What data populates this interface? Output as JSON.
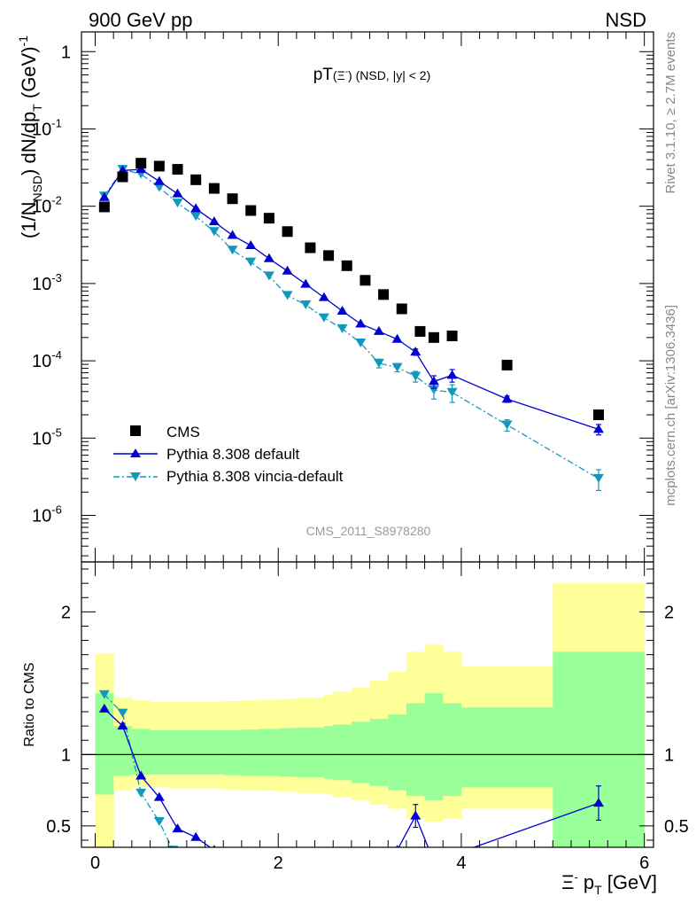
{
  "header": {
    "left": "900 GeV pp",
    "right": "NSD"
  },
  "plot_title": {
    "main": "pT",
    "paren": "(Ξ",
    "sup": "-",
    "rest": ") (NSD, |y| < 2)"
  },
  "side_labels": {
    "rivet": "Rivet 3.1.10, ≥ 2.7M events",
    "mcplots": "mcplots.cern.ch [arXiv:1306.3436]"
  },
  "watermark": "CMS_2011_S8978280",
  "y_axis_label": {
    "a": "(1/N",
    "b": "NSD",
    "c": ") dN/dp",
    "d": "T",
    "e": " (GeV)",
    "f": "-1"
  },
  "ratio_label": "Ratio to CMS",
  "x_axis_label": {
    "a": "Ξ",
    "b": "-",
    "c": " p",
    "d": "T",
    "e": " [GeV]"
  },
  "upper_ticks": [
    {
      "label": "1",
      "exp": ""
    },
    {
      "label": "10",
      "exp": "-1"
    },
    {
      "label": "10",
      "exp": "-2"
    },
    {
      "label": "10",
      "exp": "-3"
    },
    {
      "label": "10",
      "exp": "-4"
    },
    {
      "label": "10",
      "exp": "-5"
    },
    {
      "label": "10",
      "exp": "-6"
    }
  ],
  "legend": {
    "cms": "CMS",
    "pythia_default": "Pythia 8.308 default",
    "pythia_vincia": "Pythia 8.308 vincia-default"
  },
  "colors": {
    "cms": "#000000",
    "pythia_default": "#0000d0",
    "pythia_vincia": "#1199bb",
    "band_yellow": "#ffff99",
    "band_green": "#99ff99"
  },
  "chart_data": [
    {
      "type": "scatter",
      "log_y": true,
      "xlim": [
        -0.15,
        6.1
      ],
      "ylim": [
        2.5e-07,
        1.8
      ],
      "xticks": [
        0,
        2,
        4,
        6
      ],
      "series": [
        {
          "name": "CMS",
          "x": [
            0.1,
            0.3,
            0.5,
            0.7,
            0.9,
            1.1,
            1.3,
            1.5,
            1.7,
            1.9,
            2.1,
            2.35,
            2.55,
            2.75,
            2.95,
            3.15,
            3.35,
            3.55,
            3.7,
            3.9,
            4.5,
            5.5
          ],
          "y": [
            0.0098,
            0.024,
            0.036,
            0.033,
            0.03,
            0.022,
            0.017,
            0.0125,
            0.0088,
            0.007,
            0.0047,
            0.0029,
            0.0023,
            0.0017,
            0.0011,
            0.00072,
            0.00047,
            0.00024,
            0.0002,
            0.00021,
            8.8e-05,
            2e-05
          ]
        },
        {
          "name": "Pythia 8.308 default",
          "x": [
            0.1,
            0.3,
            0.5,
            0.7,
            0.9,
            1.1,
            1.3,
            1.5,
            1.7,
            1.9,
            2.1,
            2.3,
            2.5,
            2.7,
            2.9,
            3.1,
            3.3,
            3.5,
            3.7,
            3.9,
            4.5,
            5.5
          ],
          "y": [
            0.013,
            0.029,
            0.03,
            0.021,
            0.0145,
            0.0093,
            0.0063,
            0.0042,
            0.0031,
            0.0021,
            0.00145,
            0.00098,
            0.00066,
            0.00044,
            0.0003,
            0.00024,
            0.00019,
            0.00013,
            5.4e-05,
            6.5e-05,
            3.2e-05,
            1.3e-05
          ],
          "err": [
            0,
            0,
            0,
            0,
            0,
            0,
            0,
            0,
            0,
            0,
            0,
            0,
            0,
            0,
            0,
            0,
            0,
            1.2e-05,
            1e-05,
            1.2e-05,
            3e-06,
            2e-06
          ]
        },
        {
          "name": "Pythia 8.308 vincia-default",
          "x": [
            0.1,
            0.3,
            0.5,
            0.7,
            0.9,
            1.1,
            1.3,
            1.5,
            1.7,
            1.9,
            2.1,
            2.3,
            2.5,
            2.7,
            2.9,
            3.1,
            3.3,
            3.5,
            3.7,
            3.9,
            4.5,
            5.5
          ],
          "y": [
            0.0135,
            0.03,
            0.026,
            0.0175,
            0.011,
            0.0074,
            0.0047,
            0.0027,
            0.0019,
            0.00125,
            0.0007,
            0.00053,
            0.00036,
            0.00026,
            0.00017,
            9.3e-05,
            8.2e-05,
            6.3e-05,
            4.2e-05,
            3.9e-05,
            1.48e-05,
            3e-06
          ],
          "err": [
            0,
            0,
            0,
            0,
            0,
            0,
            0,
            0,
            0,
            0,
            0,
            0,
            0,
            0,
            0,
            1.2e-05,
            1e-05,
            1e-05,
            1e-05,
            1e-05,
            2.5e-06,
            9e-07
          ]
        }
      ]
    },
    {
      "type": "line",
      "ylabel": "Ratio to CMS",
      "xlim": [
        -0.15,
        6.1
      ],
      "ylim": [
        0.35,
        2.35
      ],
      "yticks": [
        0.5,
        1,
        2
      ],
      "xticks": [
        0,
        2,
        4,
        6
      ],
      "reference_line": 1,
      "bands": {
        "edges": [
          0,
          0.2,
          0.4,
          0.6,
          0.8,
          1.0,
          1.2,
          1.4,
          1.6,
          1.8,
          2.0,
          2.2,
          2.5,
          2.6,
          2.8,
          3.0,
          3.2,
          3.4,
          3.6,
          3.8,
          4.0,
          5.0,
          6.0
        ],
        "yellow_low": [
          0.35,
          0.75,
          0.77,
          0.77,
          0.76,
          0.76,
          0.76,
          0.755,
          0.75,
          0.745,
          0.74,
          0.73,
          0.72,
          0.7,
          0.68,
          0.65,
          0.62,
          0.55,
          0.53,
          0.55,
          0.62,
          0.35
        ],
        "yellow_high": [
          1.71,
          1.4,
          1.38,
          1.37,
          1.37,
          1.37,
          1.37,
          1.375,
          1.38,
          1.385,
          1.39,
          1.4,
          1.42,
          1.44,
          1.47,
          1.52,
          1.58,
          1.72,
          1.77,
          1.72,
          1.62,
          2.2
        ],
        "green_low": [
          0.72,
          0.85,
          0.86,
          0.86,
          0.86,
          0.86,
          0.86,
          0.855,
          0.85,
          0.85,
          0.845,
          0.84,
          0.83,
          0.82,
          0.8,
          0.78,
          0.75,
          0.71,
          0.68,
          0.71,
          0.77,
          0.35
        ],
        "green_high": [
          1.43,
          1.2,
          1.18,
          1.17,
          1.17,
          1.17,
          1.17,
          1.17,
          1.175,
          1.18,
          1.185,
          1.19,
          1.2,
          1.21,
          1.23,
          1.25,
          1.28,
          1.36,
          1.43,
          1.36,
          1.33,
          1.72
        ]
      },
      "series": [
        {
          "name": "Pythia 8.308 default",
          "x": [
            0.1,
            0.3,
            0.5,
            0.7,
            0.9,
            1.1,
            1.3,
            3.3,
            3.5,
            3.7,
            5.5
          ],
          "y": [
            1.32,
            1.2,
            0.85,
            0.7,
            0.48,
            0.42,
            0.33,
            0.33,
            0.57,
            0.25,
            0.66
          ],
          "err": [
            0,
            0,
            0,
            0,
            0,
            0,
            0,
            0,
            0.08,
            0,
            0.12
          ]
        },
        {
          "name": "Pythia 8.308 vincia-default",
          "x": [
            0.1,
            0.3,
            0.5,
            0.7,
            0.85
          ],
          "y": [
            1.42,
            1.29,
            0.73,
            0.53,
            0.33
          ],
          "err": [
            0,
            0,
            0,
            0,
            0
          ]
        }
      ]
    }
  ]
}
